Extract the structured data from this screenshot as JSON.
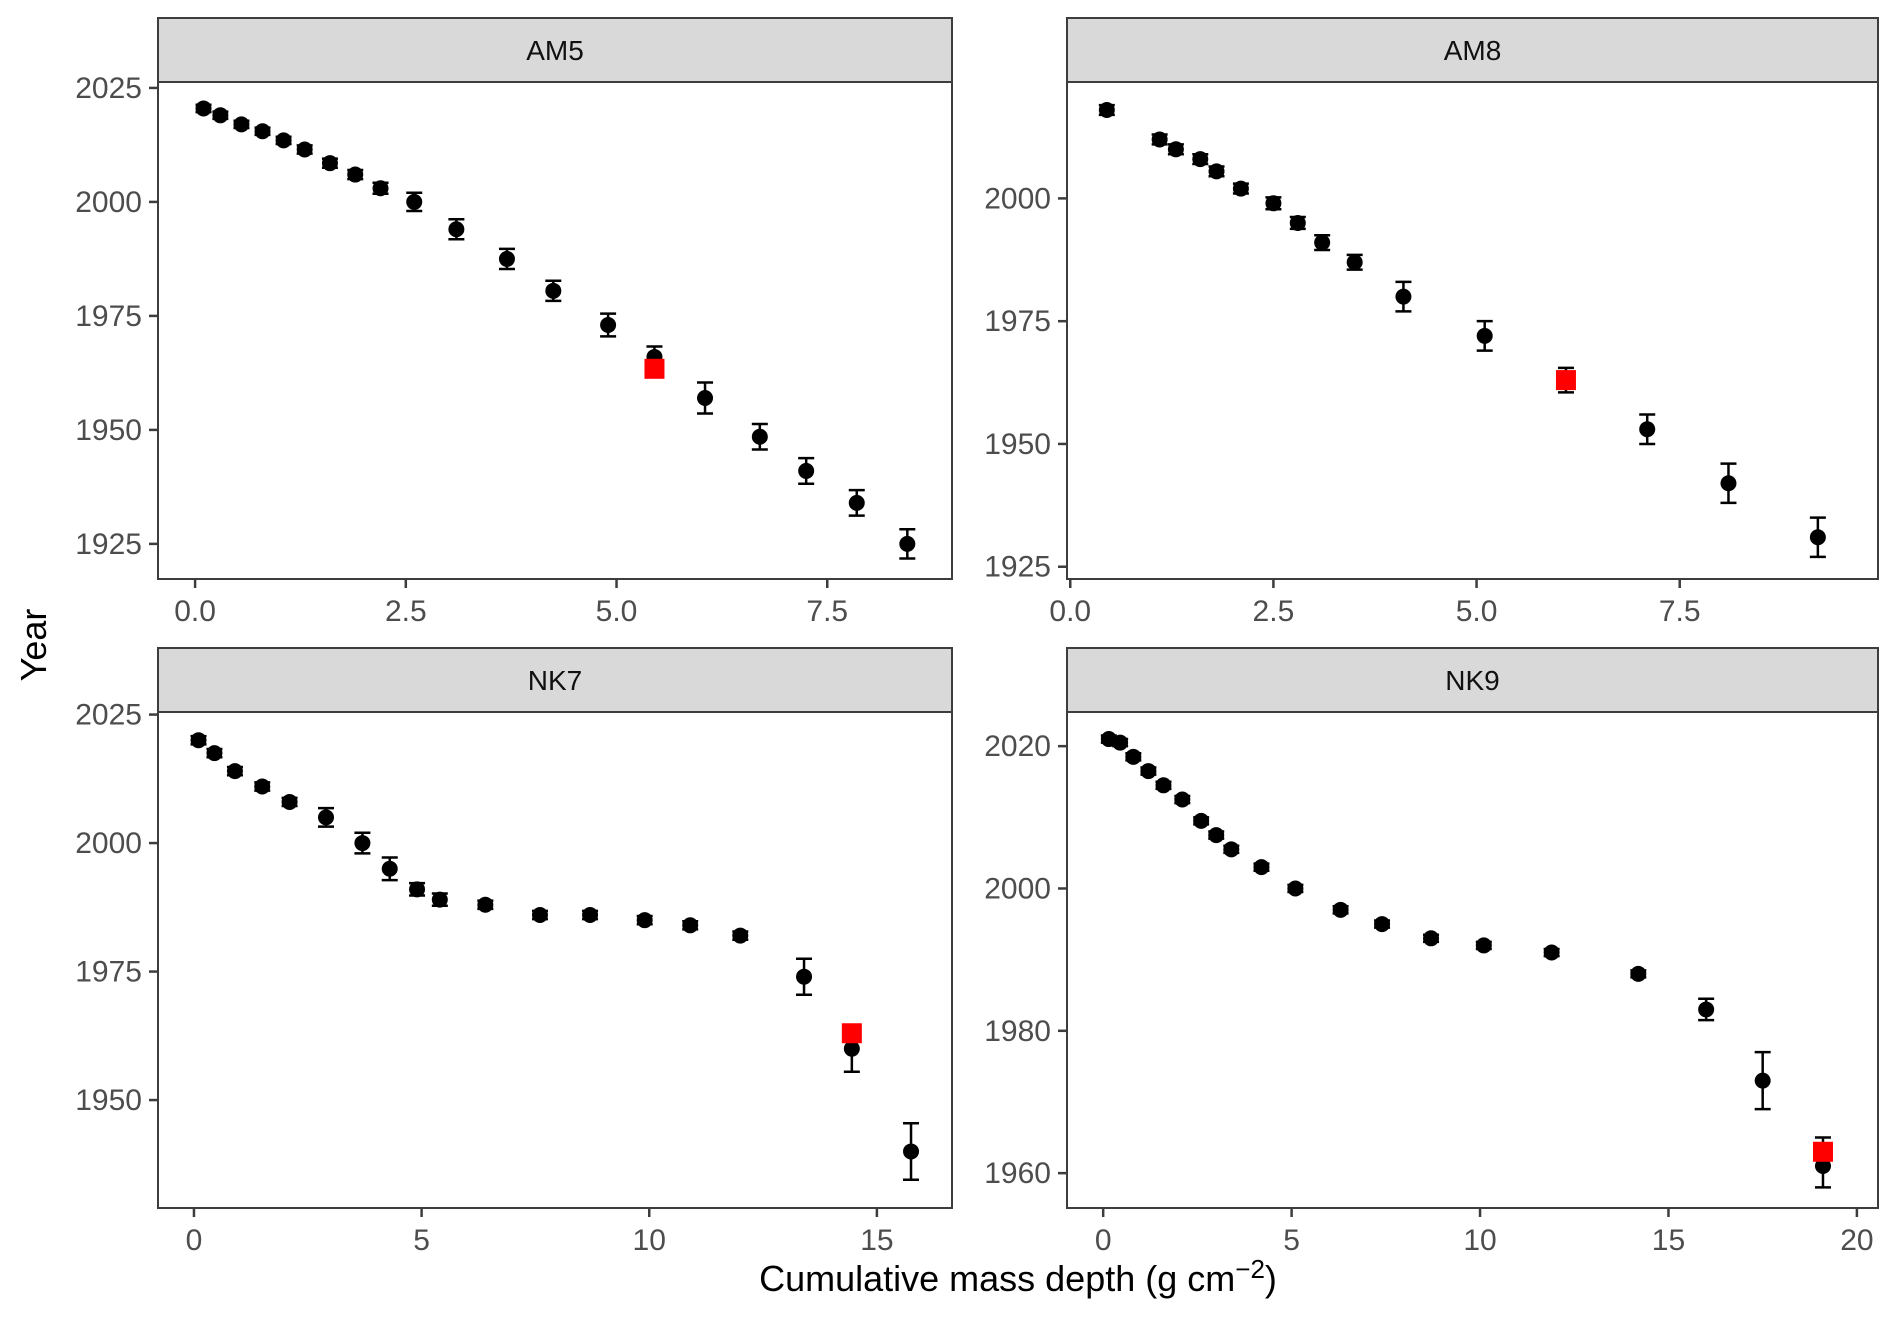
{
  "figure": {
    "y_axis_title": "Year",
    "x_axis_title": {
      "main": "Cumulative mass depth (g cm",
      "sup": "−2",
      "close": ")"
    },
    "colors": {
      "point": "#000000",
      "highlight": "#FF0000",
      "strip_fill": "#D9D9D9",
      "panel_border": "#3D3D3D",
      "panel_fill": "#FFFFFF",
      "tick_label": "#4D4D4D",
      "axis_title": "#000000"
    }
  },
  "chart_data": [
    {
      "type": "scatter",
      "panel": "AM5",
      "xlabel": "Cumulative mass depth (g cm^-2)",
      "ylabel": "Year",
      "grid": false,
      "legend": false,
      "xlim": [
        -0.44,
        8.98
      ],
      "ylim": [
        1917.3,
        2026.3
      ],
      "x_tick_values": [
        0.0,
        2.5,
        5.0,
        7.5
      ],
      "x_ticks": [
        "0.0",
        "2.5",
        "5.0",
        "7.5"
      ],
      "y_tick_values": [
        1925,
        1950,
        1975,
        2000,
        2025
      ],
      "y_ticks": [
        "1925",
        "1950",
        "1975",
        "2000",
        "2025"
      ],
      "x": [
        0.1,
        0.3,
        0.55,
        0.8,
        1.05,
        1.3,
        1.6,
        1.9,
        2.2,
        2.6,
        3.1,
        3.7,
        4.25,
        4.9,
        5.45,
        6.05,
        6.7,
        7.25,
        7.85,
        8.45
      ],
      "y": [
        2020.5,
        2019,
        2017,
        2015.5,
        2013.5,
        2011.5,
        2008.5,
        2006,
        2003,
        2000,
        1994,
        1987.5,
        1980.5,
        1973,
        1966,
        1957,
        1948.5,
        1941,
        1934,
        1925
      ],
      "yerr": [
        0.8,
        0.8,
        0.8,
        0.8,
        0.8,
        0.9,
        1.0,
        1.0,
        1.2,
        2.0,
        2.2,
        2.2,
        2.2,
        2.5,
        2.3,
        3.4,
        2.8,
        2.8,
        2.8,
        3.2
      ],
      "highlight": {
        "x": 5.45,
        "y": 1963.4,
        "yerr": 0
      }
    },
    {
      "type": "scatter",
      "panel": "AM8",
      "xlabel": "Cumulative mass depth (g cm^-2)",
      "ylabel": "Year",
      "grid": false,
      "legend": false,
      "xlim": [
        -0.04,
        9.94
      ],
      "ylim": [
        1922.5,
        2023.7
      ],
      "x_tick_values": [
        0.0,
        2.5,
        5.0,
        7.5
      ],
      "x_ticks": [
        "0.0",
        "2.5",
        "5.0",
        "7.5"
      ],
      "y_tick_values": [
        1925,
        1950,
        1975,
        2000
      ],
      "y_ticks": [
        "1925",
        "1950",
        "1975",
        "2000"
      ],
      "x": [
        0.45,
        1.1,
        1.3,
        1.6,
        1.8,
        2.1,
        2.5,
        2.8,
        3.1,
        3.5,
        4.1,
        5.1,
        7.1,
        8.1,
        9.2
      ],
      "y": [
        2018,
        2012,
        2010,
        2008,
        2005.5,
        2002,
        1999,
        1995,
        1991,
        1987,
        1980,
        1972,
        1953,
        1942,
        1931
      ],
      "yerr": [
        1.0,
        1.0,
        1.0,
        1.0,
        1.0,
        1.0,
        1.2,
        1.2,
        1.5,
        1.5,
        3.0,
        3.0,
        3.0,
        4.0,
        4.0
      ],
      "highlight": {
        "x": 6.1,
        "y": 1963,
        "yerr": 2.5
      }
    },
    {
      "type": "scatter",
      "panel": "NK7",
      "xlabel": "Cumulative mass depth (g cm^-2)",
      "ylabel": "Year",
      "grid": false,
      "legend": false,
      "xlim": [
        -0.79,
        16.65
      ],
      "ylim": [
        1929.0,
        2025.5
      ],
      "x_tick_values": [
        0,
        5,
        10,
        15
      ],
      "x_ticks": [
        "0",
        "5",
        "10",
        "15"
      ],
      "y_tick_values": [
        1950,
        1975,
        2000,
        2025
      ],
      "y_ticks": [
        "1950",
        "1975",
        "2000",
        "2025"
      ],
      "x": [
        0.1,
        0.45,
        0.9,
        1.5,
        2.1,
        2.9,
        3.7,
        4.3,
        4.9,
        5.4,
        6.4,
        7.6,
        8.7,
        9.9,
        10.9,
        12.0,
        13.4,
        14.45,
        15.75
      ],
      "y": [
        2020,
        2017.5,
        2014,
        2011,
        2008,
        2005,
        2000,
        1995,
        1991,
        1989,
        1988,
        1986,
        1986,
        1985,
        1984,
        1982,
        1974,
        1960,
        1940
      ],
      "yerr": [
        0.8,
        0.8,
        0.8,
        0.8,
        0.8,
        1.8,
        2.0,
        2.2,
        1.2,
        1.2,
        0.8,
        0.8,
        0.8,
        0.8,
        0.8,
        0.8,
        3.5,
        4.5,
        5.5
      ],
      "highlight": {
        "x": 14.45,
        "y": 1963,
        "yerr": 1.5
      }
    },
    {
      "type": "scatter",
      "panel": "NK9",
      "xlabel": "Cumulative mass depth (g cm^-2)",
      "ylabel": "Year",
      "grid": false,
      "legend": false,
      "xlim": [
        -0.96,
        20.56
      ],
      "ylim": [
        1955.1,
        2024.8
      ],
      "x_tick_values": [
        0,
        5,
        10,
        15,
        20
      ],
      "x_ticks": [
        "0",
        "5",
        "10",
        "15",
        "20"
      ],
      "y_tick_values": [
        1960,
        1980,
        2000,
        2020
      ],
      "y_ticks": [
        "1960",
        "1980",
        "2000",
        "2020"
      ],
      "x": [
        0.15,
        0.45,
        0.8,
        1.2,
        1.6,
        2.1,
        2.6,
        3.0,
        3.4,
        4.2,
        5.1,
        6.3,
        7.4,
        8.7,
        10.1,
        11.9,
        14.2,
        16.0,
        17.5,
        19.1
      ],
      "y": [
        2021,
        2020.5,
        2018.5,
        2016.5,
        2014.5,
        2012.5,
        2009.5,
        2007.5,
        2005.5,
        2003,
        2000,
        1997,
        1995,
        1993,
        1992,
        1991,
        1988,
        1983,
        1973,
        1961
      ],
      "yerr": [
        0.5,
        0.5,
        0.5,
        0.5,
        0.5,
        0.5,
        0.5,
        0.5,
        0.5,
        0.5,
        0.5,
        0.5,
        0.5,
        0.5,
        0.5,
        0.5,
        0.5,
        1.5,
        4.0,
        3.0
      ],
      "highlight": {
        "x": 19.1,
        "y": 1963,
        "yerr": 2.0
      }
    }
  ]
}
